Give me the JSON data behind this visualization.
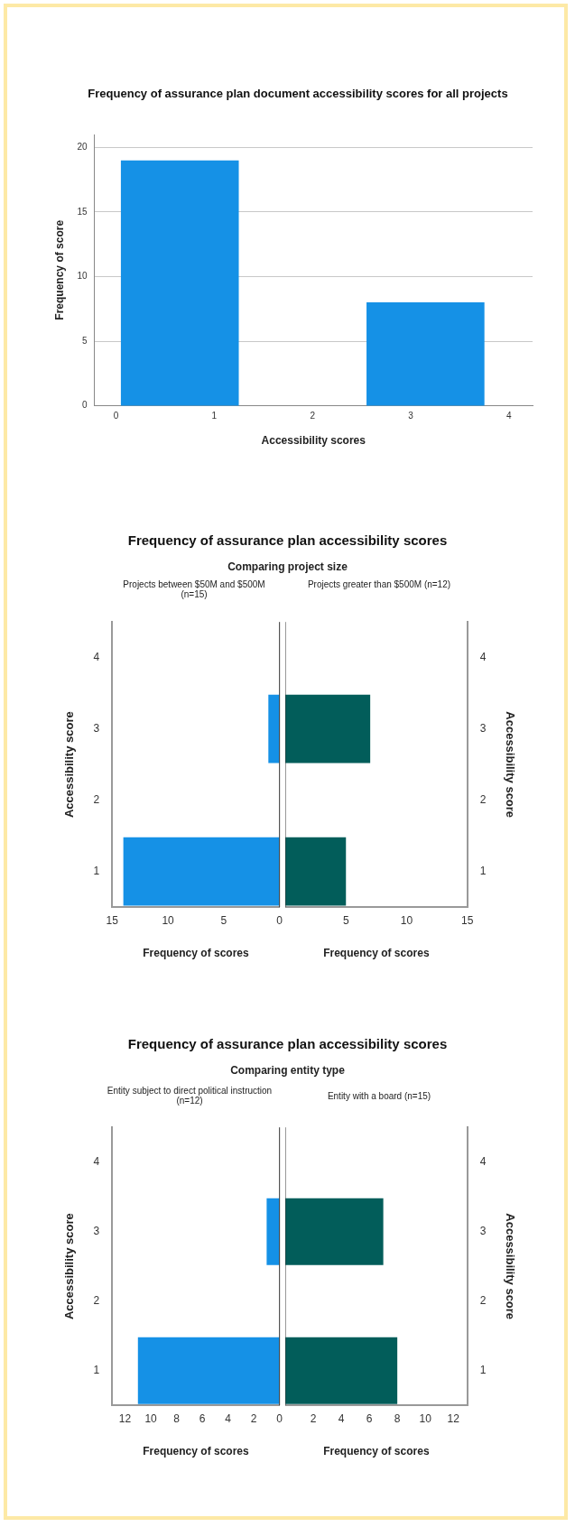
{
  "chart_data": [
    {
      "type": "histogram",
      "title": "Frequency of assurance plan document accessibility scores for all projects",
      "xlabel": "Accessibility scores",
      "ylabel": "Frequency of score",
      "bins": [
        0.05,
        1.25,
        2.55,
        3.75
      ],
      "values": [
        19,
        0,
        8
      ],
      "color": "#1591e6",
      "xlim": [
        -0.22,
        4.24
      ],
      "xticks": [
        0,
        1,
        2,
        3,
        4
      ],
      "ylim": [
        0,
        21
      ],
      "yticks": [
        0,
        5,
        10,
        15,
        20
      ],
      "grid": "y"
    },
    {
      "type": "bar",
      "orientation": "horizontal",
      "title": "Frequency of assurance plan accessibility scores",
      "subtitle": "Comparing project size",
      "annotations": [
        "Projects between $50M and $500M (n=15)"
      ],
      "xlabel": "Frequency of scores",
      "ylabel": "Accessibility score",
      "categories": [
        "4",
        "3",
        "2",
        "1"
      ],
      "values": [
        0,
        1,
        0,
        14
      ],
      "color": "#1591e6",
      "xlim": [
        15,
        0
      ],
      "xticks": [
        15,
        10,
        5,
        0
      ]
    },
    {
      "type": "bar",
      "orientation": "horizontal",
      "annotations": [
        "Projects greater than $500M (n=12)"
      ],
      "xlabel": "Frequency of scores",
      "ylabel": "Accessibility score",
      "categories": [
        "4",
        "3",
        "2",
        "1"
      ],
      "values": [
        0,
        7,
        0,
        5
      ],
      "color": "#025d5a",
      "xlim": [
        0,
        15
      ],
      "xticks": [
        5,
        10,
        15
      ]
    },
    {
      "type": "bar",
      "orientation": "horizontal",
      "title": "Frequency of assurance plan accessibility scores",
      "subtitle": "Comparing entity type",
      "annotations": [
        "Entity subject to direct political instruction  (n=12)"
      ],
      "xlabel": "Frequency of scores",
      "ylabel": "Accessibility score",
      "categories": [
        "4",
        "3",
        "2",
        "1"
      ],
      "values": [
        0,
        1,
        0,
        11
      ],
      "color": "#1591e6",
      "xlim": [
        13,
        0
      ],
      "xticks": [
        12,
        10,
        8,
        6,
        4,
        2,
        0
      ]
    },
    {
      "type": "bar",
      "orientation": "horizontal",
      "annotations": [
        "Entity with a board (n=15)"
      ],
      "xlabel": "Frequency of scores",
      "ylabel": "Accessibility score",
      "categories": [
        "4",
        "3",
        "2",
        "1"
      ],
      "values": [
        0,
        7,
        0,
        8
      ],
      "color": "#025d5a",
      "xlim": [
        0,
        13
      ],
      "xticks": [
        2,
        4,
        6,
        8,
        10,
        12
      ]
    }
  ]
}
